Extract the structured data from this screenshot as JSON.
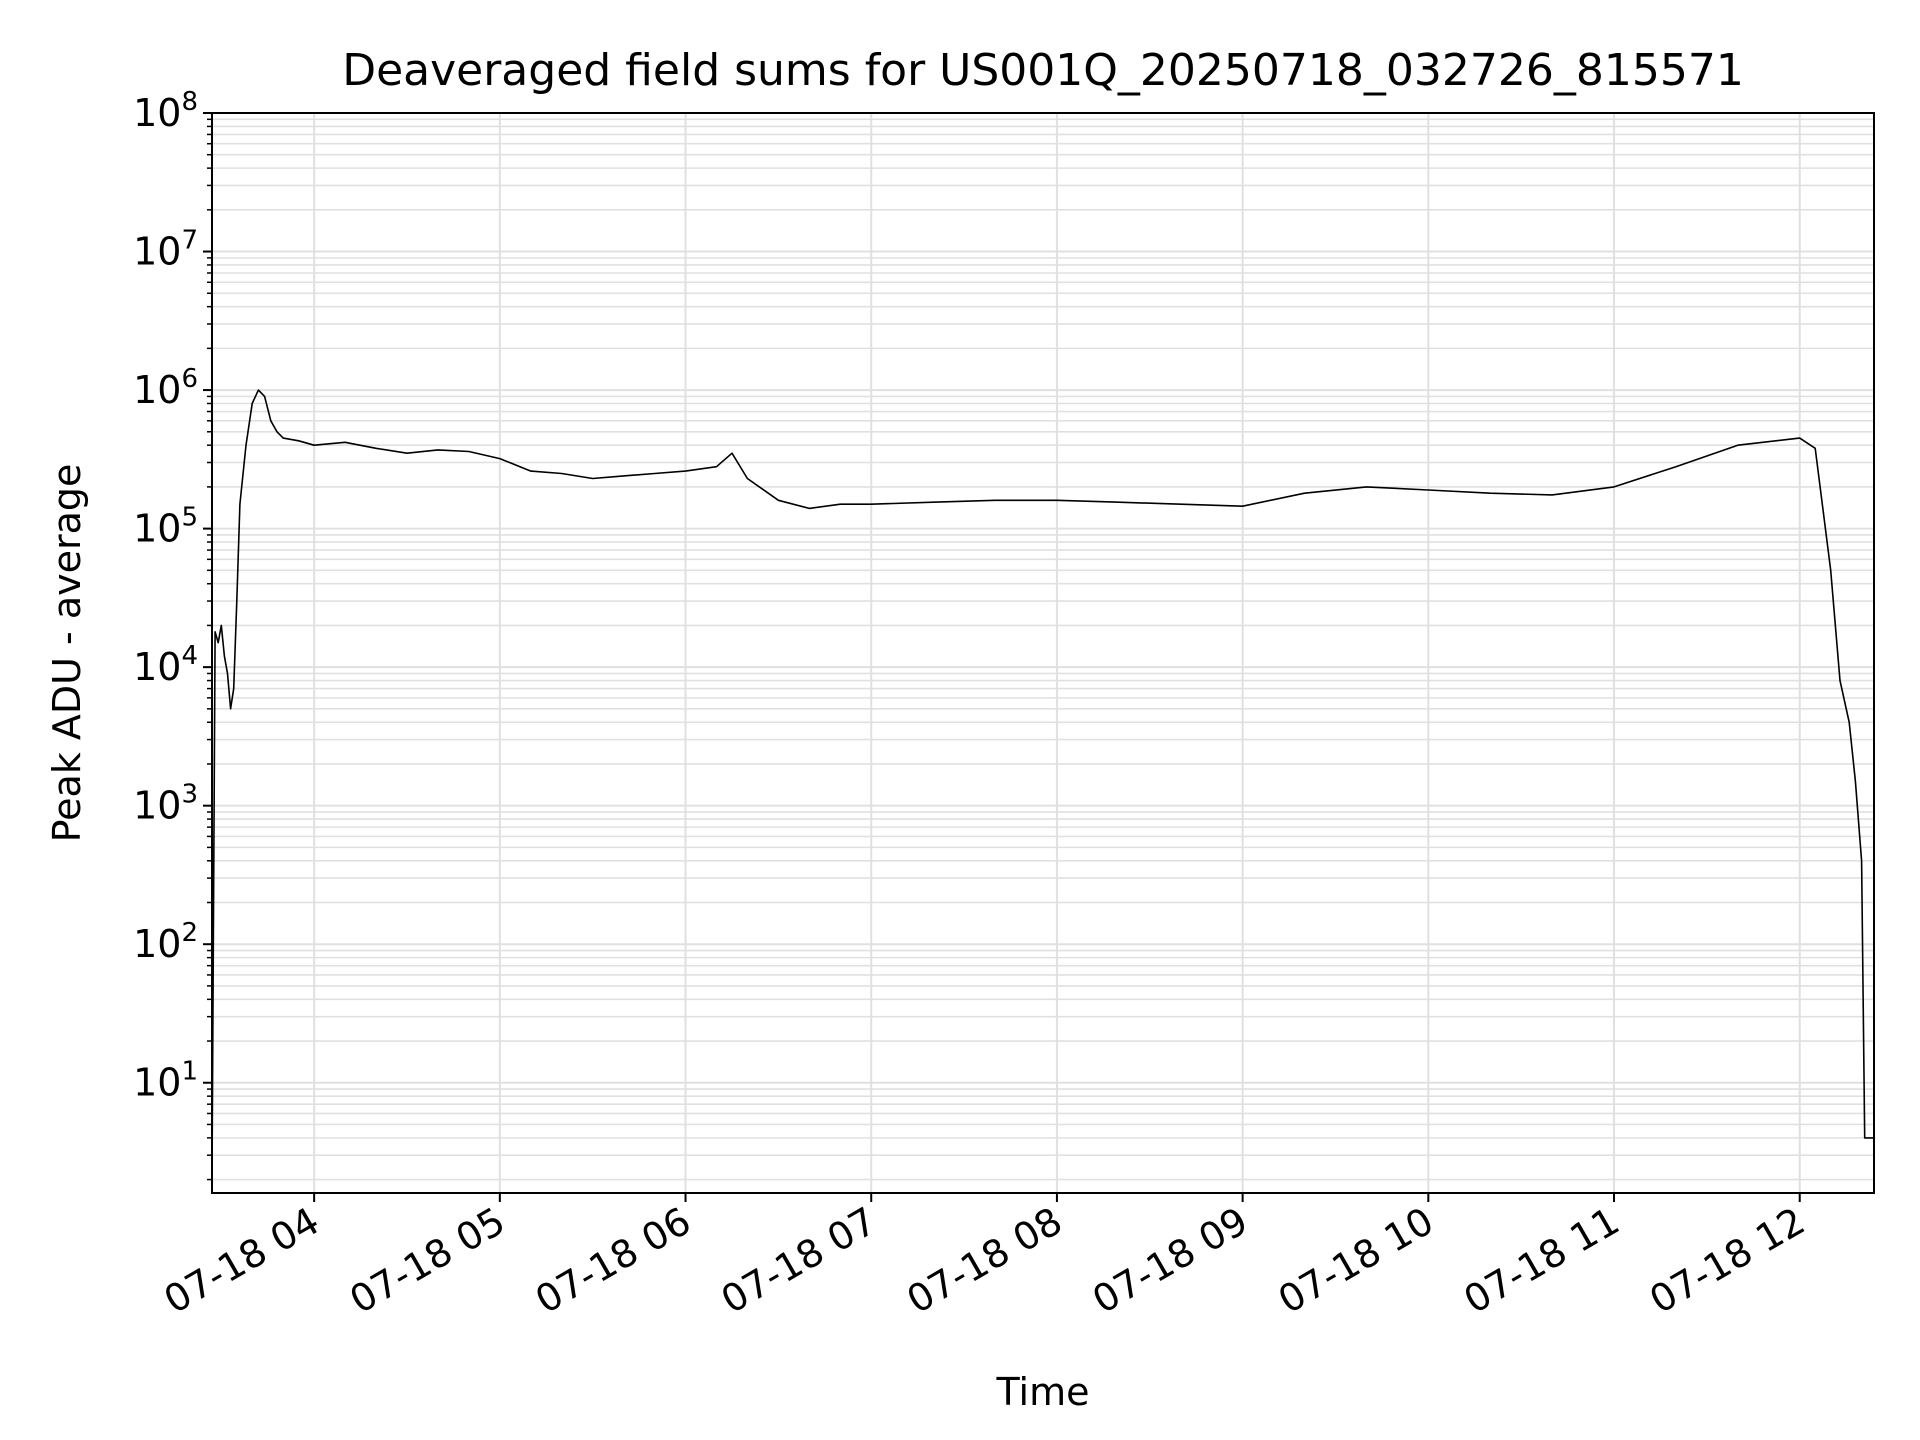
{
  "chart_data": {
    "type": "line",
    "title": "Deaveraged field sums for US001Q_20250718_032726_815571",
    "xlabel": "Time",
    "ylabel": "Peak ADU - average",
    "y_scale": "log",
    "ylim": [
      1.6,
      100000000
    ],
    "xlim": [
      "07-18 03:27",
      "07-18 12:24"
    ],
    "x_ticks": [
      "07-18 04",
      "07-18 05",
      "07-18 06",
      "07-18 07",
      "07-18 08",
      "07-18 09",
      "07-18 10",
      "07-18 11",
      "07-18 12"
    ],
    "y_ticks": [
      {
        "base": "10",
        "exp": "1"
      },
      {
        "base": "10",
        "exp": "2"
      },
      {
        "base": "10",
        "exp": "3"
      },
      {
        "base": "10",
        "exp": "4"
      },
      {
        "base": "10",
        "exp": "5"
      },
      {
        "base": "10",
        "exp": "6"
      },
      {
        "base": "10",
        "exp": "7"
      },
      {
        "base": "10",
        "exp": "8"
      }
    ],
    "grid": true,
    "line_color": "#000000",
    "grid_color": "#e0e0e0",
    "series": [
      {
        "x": [
          "03:27",
          "03:28",
          "03:29",
          "03:30",
          "03:31",
          "03:32",
          "03:33",
          "03:34",
          "03:35",
          "03:36",
          "03:38",
          "03:40",
          "03:42",
          "03:44",
          "03:46",
          "03:48",
          "03:50",
          "03:55",
          "04:00",
          "04:10",
          "04:20",
          "04:30",
          "04:40",
          "04:50",
          "05:00",
          "05:10",
          "05:20",
          "05:30",
          "05:40",
          "05:50",
          "06:00",
          "06:10",
          "06:15",
          "06:20",
          "06:30",
          "06:40",
          "06:50",
          "07:00",
          "07:20",
          "07:40",
          "08:00",
          "08:20",
          "08:40",
          "09:00",
          "09:20",
          "09:40",
          "10:00",
          "10:20",
          "10:40",
          "11:00",
          "11:20",
          "11:40",
          "12:00",
          "12:05",
          "12:10",
          "12:13",
          "12:16",
          "12:18",
          "12:20",
          "12:21",
          "12:22",
          "12:24"
        ],
        "y": [
          2,
          18000,
          15000,
          20000,
          12000,
          9000,
          5000,
          7000,
          30000,
          150000,
          400000,
          800000,
          1000000,
          900000,
          600000,
          500000,
          450000,
          430000,
          400000,
          420000,
          380000,
          350000,
          370000,
          360000,
          320000,
          260000,
          250000,
          230000,
          240000,
          250000,
          260000,
          280000,
          350000,
          230000,
          160000,
          140000,
          150000,
          150000,
          155000,
          160000,
          160000,
          155000,
          150000,
          145000,
          180000,
          200000,
          190000,
          180000,
          175000,
          200000,
          280000,
          400000,
          450000,
          380000,
          50000,
          8000,
          4000,
          1500,
          400,
          4,
          4,
          4
        ]
      }
    ]
  }
}
